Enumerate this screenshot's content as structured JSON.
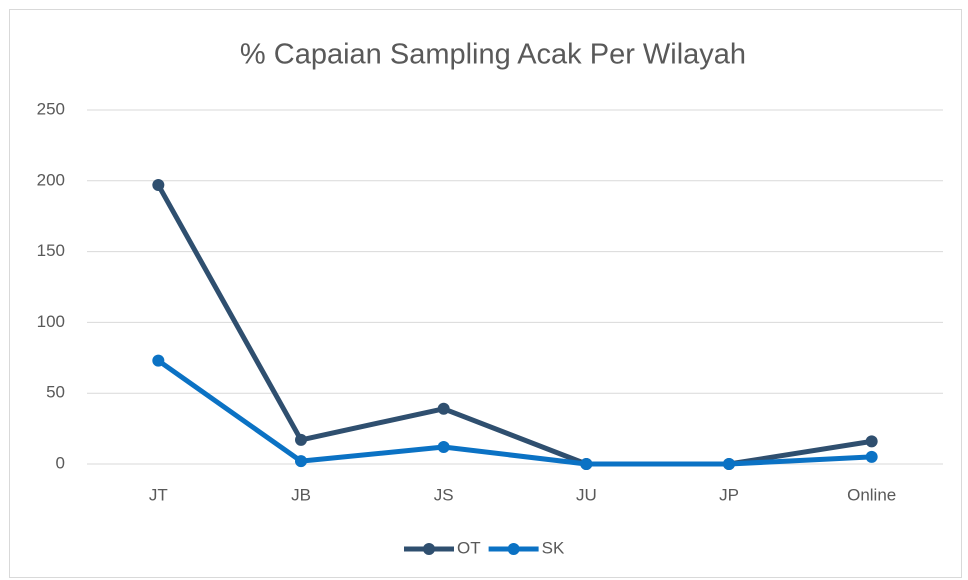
{
  "chart_data": {
    "type": "line",
    "title": "% Capaian Sampling Acak Per Wilayah",
    "categories": [
      "JT",
      "JB",
      "JS",
      "JU",
      "JP",
      "Online"
    ],
    "series": [
      {
        "name": "OT",
        "color": "#2f4f6f",
        "values": [
          197,
          17,
          39,
          0,
          0,
          16
        ]
      },
      {
        "name": "SK",
        "color": "#0b72c4",
        "values": [
          73,
          2,
          12,
          0,
          0,
          5
        ]
      }
    ],
    "ylim": [
      0,
      250
    ],
    "yticks": [
      0,
      50,
      100,
      150,
      200,
      250
    ],
    "grid": true,
    "legend": "bottom"
  }
}
